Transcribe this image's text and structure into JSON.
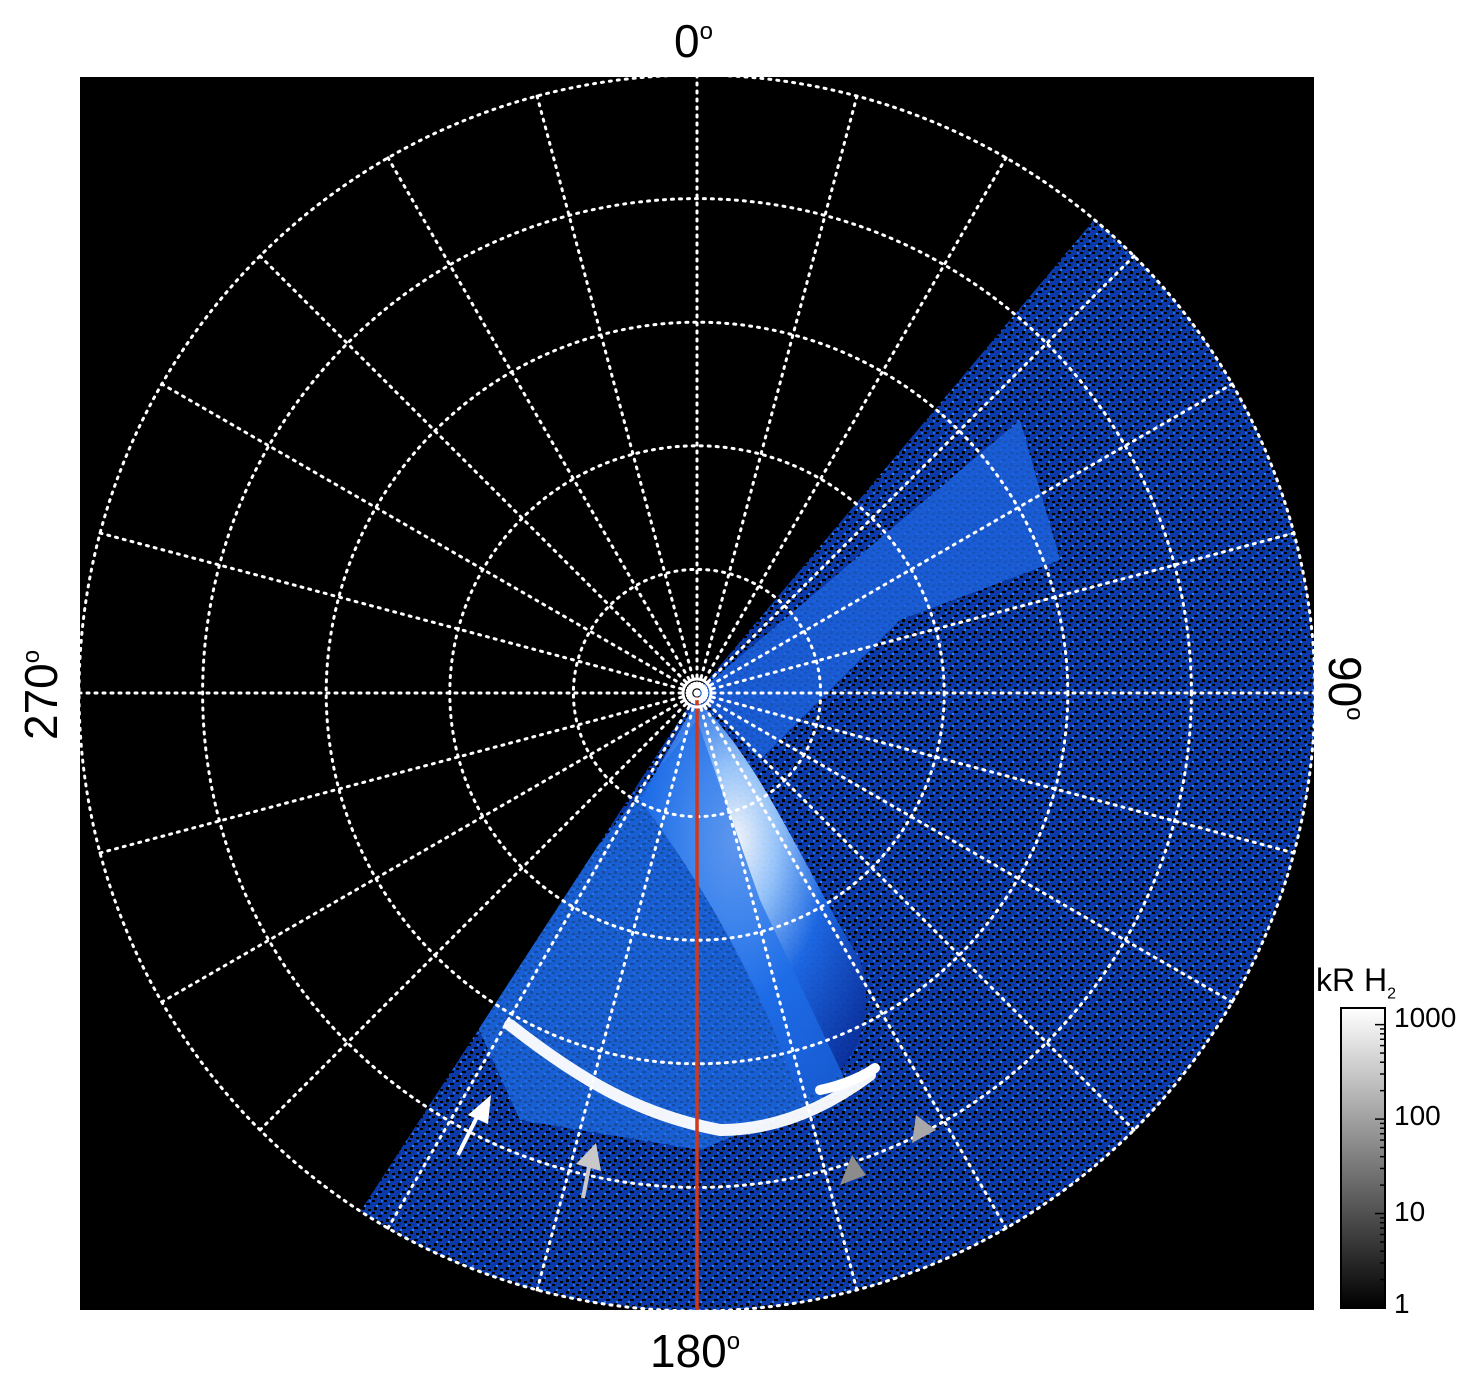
{
  "axis_labels": {
    "top": "0",
    "right": "90",
    "bottom": "180",
    "left": "270",
    "unit": "o"
  },
  "colorbar": {
    "title_main": "kR H",
    "title_sub": "2",
    "ticks": [
      "1000",
      "100",
      "10",
      "1"
    ],
    "scale": "log",
    "range": [
      1,
      1500
    ]
  },
  "colors": {
    "background": "#000000",
    "grid": "#ffffff",
    "meridian": "#d0381a",
    "aurora_low": "#0a3cc8",
    "aurora_high": "#ffffff"
  },
  "grid": {
    "meridian_step_deg": 15,
    "ring_count": 5,
    "style": "dotted"
  },
  "markers": [
    {
      "name": "white-arrow",
      "color": "#ffffff"
    },
    {
      "name": "light-gray-arrow",
      "color": "#c8c8c8"
    },
    {
      "name": "gray-arrowhead-1",
      "color": "#8c8c8c"
    },
    {
      "name": "gray-arrowhead-2",
      "color": "#a8a8a8"
    }
  ]
}
